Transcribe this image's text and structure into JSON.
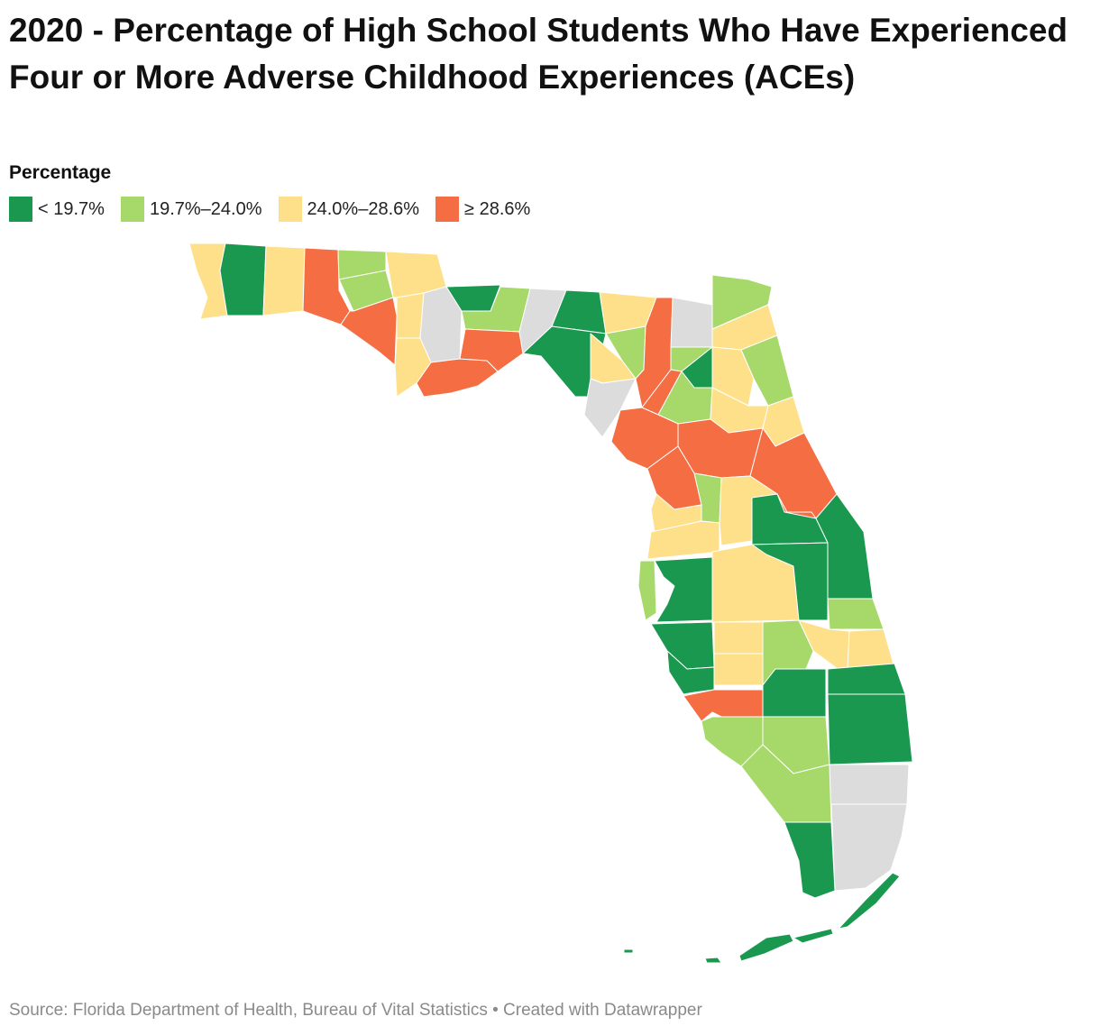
{
  "title": "2020 - Percentage of High School Students Who Have Experienced Four or More Adverse Childhood Experiences (ACEs)",
  "legend": {
    "title": "Percentage",
    "items": [
      {
        "label": "< 19.7%",
        "color": "#1a9850"
      },
      {
        "label": "19.7%–24.0%",
        "color": "#a6d96a"
      },
      {
        "label": "24.0%–28.6%",
        "color": "#fee08b"
      },
      {
        "label": "≥ 28.6%",
        "color": "#f46d43"
      }
    ]
  },
  "no_data_color": "#dcdcdc",
  "source": "Source: Florida Department of Health, Bureau of Vital Statistics • Created with Datawrapper",
  "counties": [
    {
      "name": "Escambia",
      "class": 2
    },
    {
      "name": "Santa Rosa",
      "class": 0
    },
    {
      "name": "Okaloosa",
      "class": 2
    },
    {
      "name": "Walton",
      "class": 3
    },
    {
      "name": "Holmes",
      "class": 1
    },
    {
      "name": "Washington",
      "class": 1
    },
    {
      "name": "Jackson",
      "class": 2
    },
    {
      "name": "Bay",
      "class": 3
    },
    {
      "name": "Calhoun",
      "class": 2
    },
    {
      "name": "Gulf",
      "class": 2
    },
    {
      "name": "Liberty",
      "class": null
    },
    {
      "name": "Gadsden",
      "class": 0
    },
    {
      "name": "Leon",
      "class": 1
    },
    {
      "name": "Franklin",
      "class": 3
    },
    {
      "name": "Wakulla",
      "class": 3
    },
    {
      "name": "Jefferson",
      "class": null
    },
    {
      "name": "Madison",
      "class": 0
    },
    {
      "name": "Taylor",
      "class": 0
    },
    {
      "name": "Hamilton",
      "class": 2
    },
    {
      "name": "Suwannee",
      "class": 1
    },
    {
      "name": "Lafayette",
      "class": 2
    },
    {
      "name": "Dixie",
      "class": null
    },
    {
      "name": "Columbia",
      "class": 3
    },
    {
      "name": "Baker",
      "class": null
    },
    {
      "name": "Nassau",
      "class": 1
    },
    {
      "name": "Duval",
      "class": 2
    },
    {
      "name": "Union",
      "class": 1
    },
    {
      "name": "Bradford",
      "class": 0
    },
    {
      "name": "Clay",
      "class": 2
    },
    {
      "name": "St. Johns",
      "class": 1
    },
    {
      "name": "Gilchrist",
      "class": 3
    },
    {
      "name": "Alachua",
      "class": 1
    },
    {
      "name": "Putnam",
      "class": 2
    },
    {
      "name": "Flagler",
      "class": 2
    },
    {
      "name": "Levy",
      "class": 3
    },
    {
      "name": "Marion",
      "class": 3
    },
    {
      "name": "Volusia",
      "class": 3
    },
    {
      "name": "Citrus",
      "class": 3
    },
    {
      "name": "Sumter",
      "class": 1
    },
    {
      "name": "Lake",
      "class": 2
    },
    {
      "name": "Seminole",
      "class": 3
    },
    {
      "name": "Hernando",
      "class": 2
    },
    {
      "name": "Pasco",
      "class": 2
    },
    {
      "name": "Orange",
      "class": 0
    },
    {
      "name": "Brevard",
      "class": 0
    },
    {
      "name": "Pinellas",
      "class": 1
    },
    {
      "name": "Hillsborough",
      "class": 0
    },
    {
      "name": "Polk",
      "class": 2
    },
    {
      "name": "Osceola",
      "class": 0
    },
    {
      "name": "Indian River",
      "class": 1
    },
    {
      "name": "Manatee",
      "class": 0
    },
    {
      "name": "Hardee",
      "class": 2
    },
    {
      "name": "Highlands",
      "class": 1
    },
    {
      "name": "Okeechobee",
      "class": 2
    },
    {
      "name": "St. Lucie",
      "class": 2
    },
    {
      "name": "Sarasota",
      "class": 0
    },
    {
      "name": "DeSoto",
      "class": 2
    },
    {
      "name": "Martin",
      "class": 0
    },
    {
      "name": "Charlotte",
      "class": 3
    },
    {
      "name": "Glades",
      "class": 0
    },
    {
      "name": "Palm Beach",
      "class": 0
    },
    {
      "name": "Lee",
      "class": 1
    },
    {
      "name": "Hendry",
      "class": 1
    },
    {
      "name": "Broward",
      "class": null
    },
    {
      "name": "Collier",
      "class": 1
    },
    {
      "name": "Miami-Dade",
      "class": null
    },
    {
      "name": "Monroe",
      "class": 0
    }
  ]
}
